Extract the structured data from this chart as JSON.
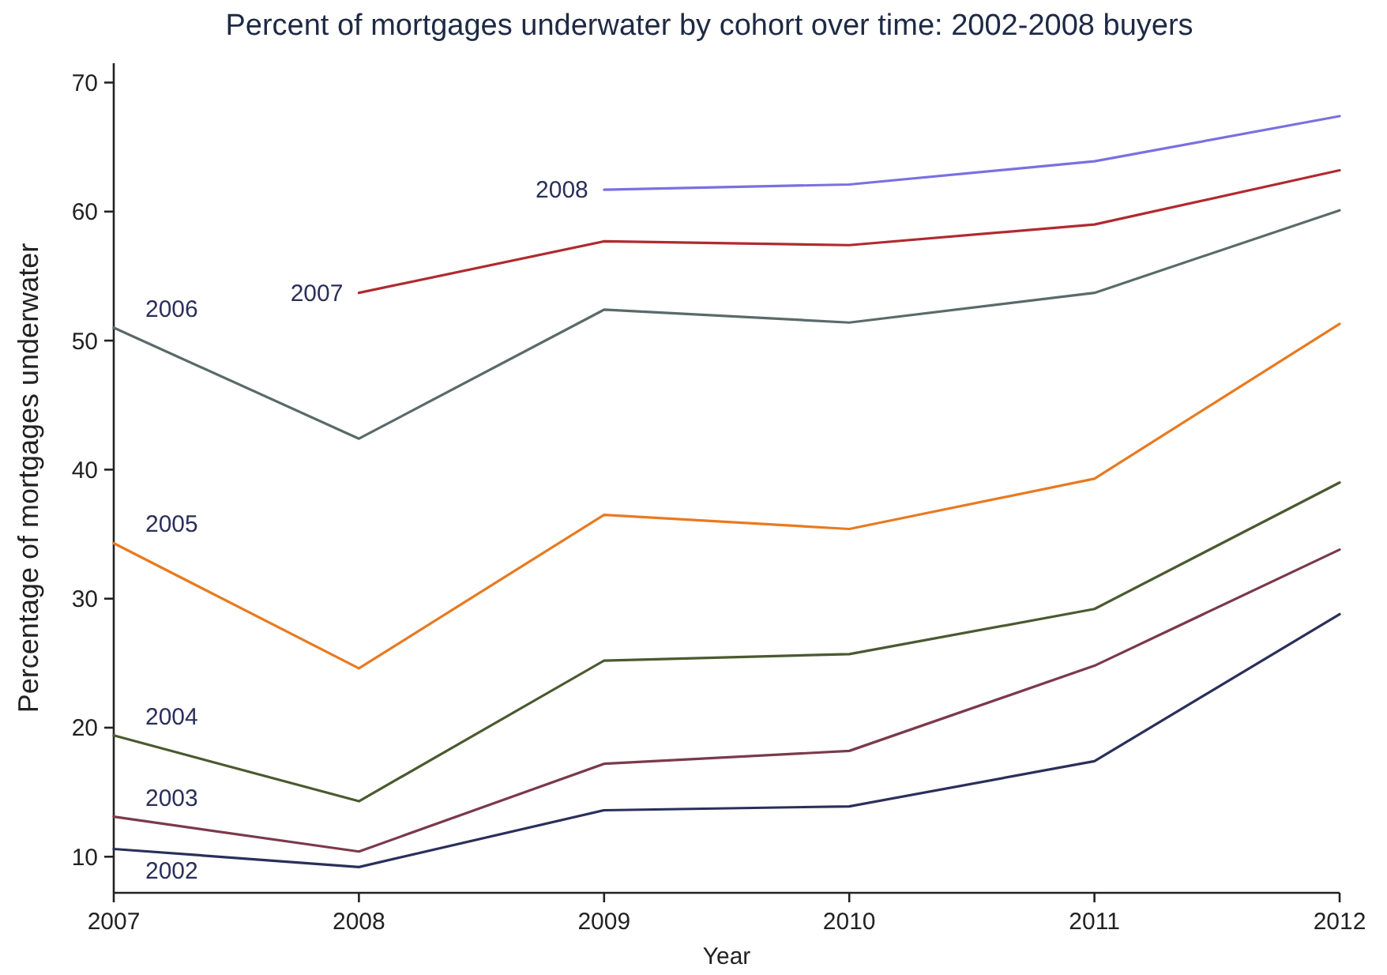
{
  "chart_data": {
    "type": "line",
    "title": "Percent of mortgages underwater by cohort over time: 2002-2008 buyers",
    "xlabel": "Year",
    "ylabel": "Percentage of mortgages underwater",
    "x": [
      2007,
      2008,
      2009,
      2010,
      2011,
      2012
    ],
    "xlim": [
      2007,
      2012
    ],
    "xticks": [
      2007,
      2008,
      2009,
      2010,
      2011,
      2012
    ],
    "ylim": [
      7.2,
      71.5
    ],
    "yticks": [
      10,
      20,
      30,
      40,
      50,
      60,
      70
    ],
    "grid": false,
    "legend": false,
    "marker": "none",
    "line_style": "solid",
    "series": [
      {
        "name": "2002",
        "color": "#2a2f5a",
        "values": [
          10.6,
          9.2,
          13.6,
          13.9,
          17.4,
          28.8
        ]
      },
      {
        "name": "2003",
        "color": "#7a3a4a",
        "values": [
          13.1,
          10.4,
          17.2,
          18.2,
          24.8,
          33.8
        ]
      },
      {
        "name": "2004",
        "color": "#4a5a30",
        "values": [
          19.4,
          14.3,
          25.2,
          25.7,
          29.2,
          39.0
        ]
      },
      {
        "name": "2005",
        "color": "#e87a20",
        "values": [
          34.3,
          24.6,
          36.5,
          35.4,
          39.3,
          51.3
        ]
      },
      {
        "name": "2006",
        "color": "#5a6a6a",
        "values": [
          51.0,
          42.4,
          52.4,
          51.4,
          53.7,
          60.1
        ]
      },
      {
        "name": "2007",
        "color": "#b02a30",
        "values": [
          null,
          53.7,
          57.7,
          57.4,
          59.0,
          63.2
        ]
      },
      {
        "name": "2008",
        "color": "#7a70e0",
        "values": [
          null,
          null,
          61.7,
          62.1,
          63.9,
          67.4
        ]
      }
    ]
  }
}
